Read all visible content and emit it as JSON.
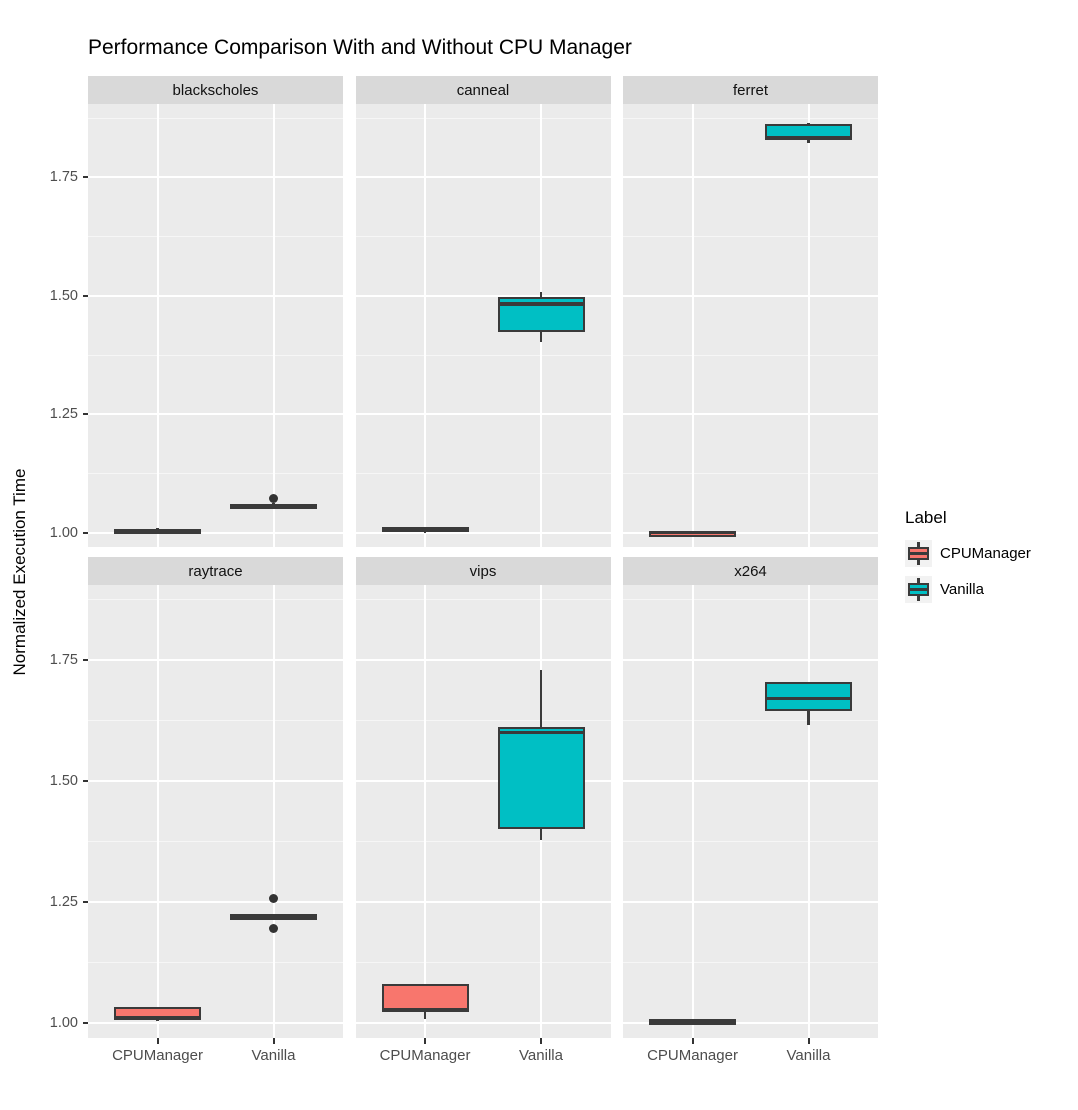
{
  "title": "Performance Comparison With and Without CPU Manager",
  "y_axis_title": "Normalized Execution Time",
  "legend": {
    "title": "Label",
    "items": [
      {
        "label": "CPUManager",
        "color": "#F8766D"
      },
      {
        "label": "Vanilla",
        "color": "#00BFC4"
      }
    ]
  },
  "colors": {
    "panel_bg": "#EBEBEB",
    "strip_bg": "#D9D9D9",
    "grid": "#FFFFFF",
    "box_stroke": "#3A3A3A",
    "axis_text": "#4D4D4D",
    "cpumanager_fill": "#F8766D",
    "vanilla_fill": "#00BFC4",
    "legend_key_bg": "#F2F2F2"
  },
  "chart_data": {
    "type": "boxplot",
    "title": "Performance Comparison With and Without CPU Manager",
    "ylabel": "Normalized Execution Time",
    "xlabel": "",
    "facet_by": "benchmark",
    "x_categories": [
      "CPUManager",
      "Vanilla"
    ],
    "y_axis": {
      "major_ticks": [
        1.0,
        1.25,
        1.5,
        1.75
      ],
      "minor_ticks": [
        1.125,
        1.375,
        1.625,
        1.875
      ],
      "domain": [
        0.97,
        1.905
      ]
    },
    "legend_position": "right",
    "grid": true,
    "facets": [
      {
        "name": "blackscholes",
        "groups": [
          {
            "label": "CPUManager",
            "color": "#F8766D",
            "stats": {
              "min": 1.001,
              "q1": 1.003,
              "med": 1.005,
              "q3": 1.008,
              "max": 1.01
            },
            "outliers": []
          },
          {
            "label": "Vanilla",
            "color": "#00BFC4",
            "stats": {
              "min": 1.052,
              "q1": 1.054,
              "med": 1.057,
              "q3": 1.06,
              "max": 1.062
            },
            "outliers": [
              1.073
            ]
          }
        ]
      },
      {
        "name": "canneal",
        "groups": [
          {
            "label": "CPUManager",
            "color": "#F8766D",
            "stats": {
              "min": 1.0,
              "q1": 1.002,
              "med": 1.005,
              "q3": 1.012,
              "max": 1.013
            },
            "outliers": []
          },
          {
            "label": "Vanilla",
            "color": "#00BFC4",
            "stats": {
              "min": 1.403,
              "q1": 1.424,
              "med": 1.483,
              "q3": 1.497,
              "max": 1.508
            },
            "outliers": []
          }
        ]
      },
      {
        "name": "ferret",
        "groups": [
          {
            "label": "CPUManager",
            "color": "#F8766D",
            "stats": {
              "min": 0.999,
              "q1": 1.0,
              "med": 1.001,
              "q3": 1.002,
              "max": 1.003
            },
            "outliers": []
          },
          {
            "label": "Vanilla",
            "color": "#00BFC4",
            "stats": {
              "min": 1.822,
              "q1": 1.828,
              "med": 1.833,
              "q3": 1.863,
              "max": 1.864
            },
            "outliers": []
          }
        ]
      },
      {
        "name": "raytrace",
        "groups": [
          {
            "label": "CPUManager",
            "color": "#F8766D",
            "stats": {
              "min": 1.005,
              "q1": 1.008,
              "med": 1.011,
              "q3": 1.034,
              "max": 1.035
            },
            "outliers": []
          },
          {
            "label": "Vanilla",
            "color": "#00BFC4",
            "stats": {
              "min": 1.219,
              "q1": 1.22,
              "med": 1.222,
              "q3": 1.224,
              "max": 1.225
            },
            "outliers": [
              1.257,
              1.196
            ]
          }
        ]
      },
      {
        "name": "vips",
        "groups": [
          {
            "label": "CPUManager",
            "color": "#F8766D",
            "stats": {
              "min": 1.01,
              "q1": 1.025,
              "med": 1.028,
              "q3": 1.081,
              "max": 1.082
            },
            "outliers": []
          },
          {
            "label": "Vanilla",
            "color": "#00BFC4",
            "stats": {
              "min": 1.379,
              "q1": 1.402,
              "med": 1.601,
              "q3": 1.612,
              "max": 1.729
            },
            "outliers": []
          }
        ]
      },
      {
        "name": "x264",
        "groups": [
          {
            "label": "CPUManager",
            "color": "#F8766D",
            "stats": {
              "min": 1.002,
              "q1": 1.003,
              "med": 1.005,
              "q3": 1.007,
              "max": 1.008
            },
            "outliers": []
          },
          {
            "label": "Vanilla",
            "color": "#00BFC4",
            "stats": {
              "min": 1.617,
              "q1": 1.644,
              "med": 1.671,
              "q3": 1.704,
              "max": 1.704
            },
            "outliers": []
          }
        ]
      }
    ]
  }
}
